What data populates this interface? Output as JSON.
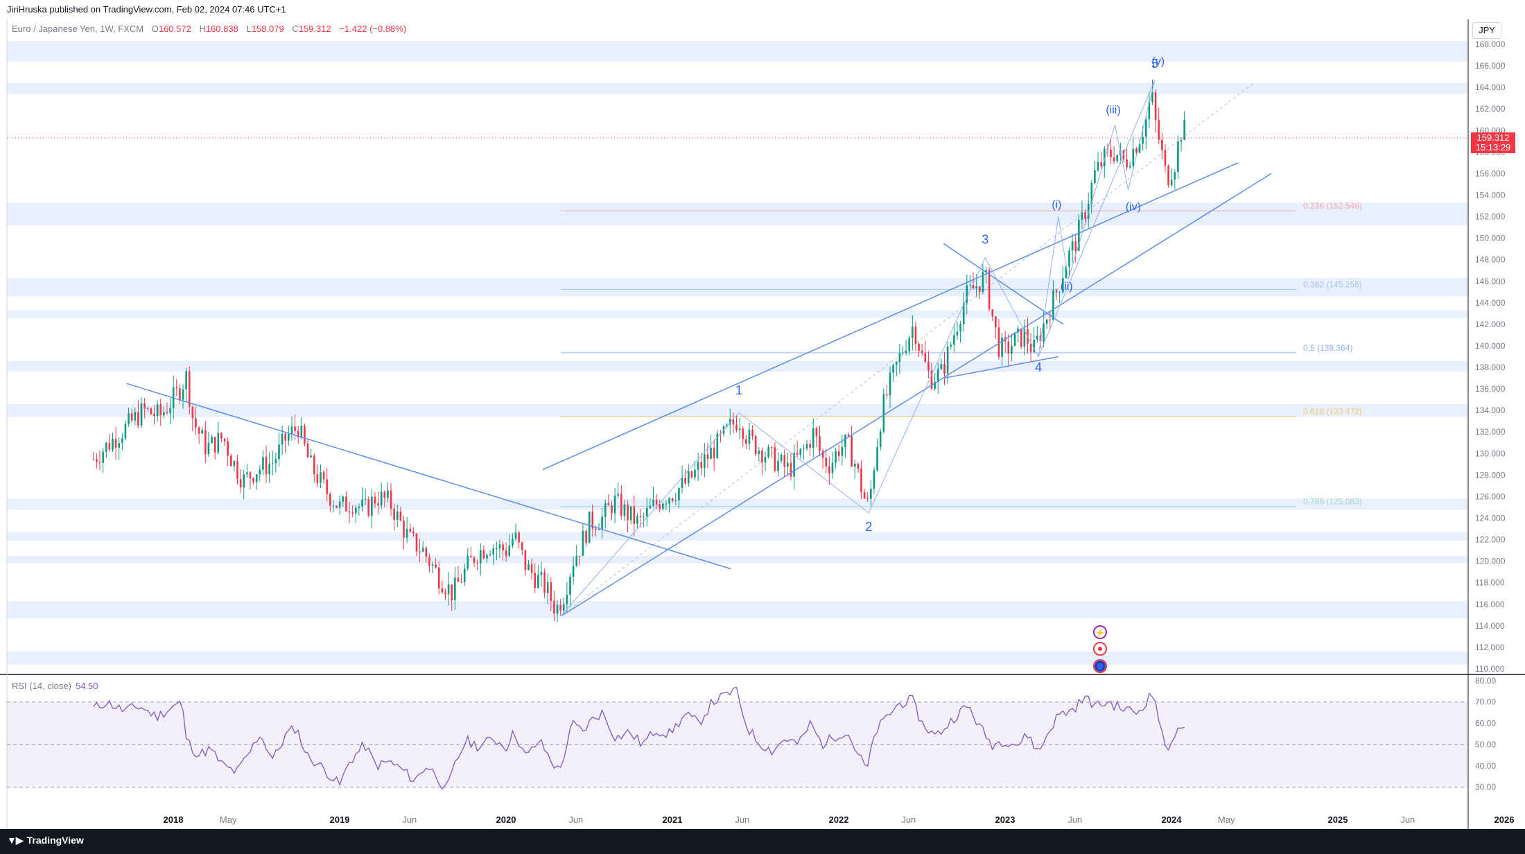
{
  "header": {
    "published_by": "JiriHruska published on TradingView.com, Feb 02, 2024 07:46 UTC+1"
  },
  "legend": {
    "symbol": "Euro / Japanese Yen, 1W, FXCM",
    "open_label": "O",
    "open": "160.572",
    "high_label": "H",
    "high": "160.838",
    "low_label": "L",
    "low": "158.079",
    "close_label": "C",
    "close": "159.312",
    "change": "−1.422 (−0.88%)"
  },
  "currency_button": "JPY",
  "price_tag": {
    "price": "159.312",
    "countdown": "15:13:29"
  },
  "footer": {
    "brand": "TradingView"
  },
  "colors": {
    "accent": "#2962ff",
    "down": "#f23645",
    "up": "#089981",
    "trendline": "#5b8def",
    "rsi": "#7e57c2",
    "band": "#e8efff"
  },
  "chart_data": [
    {
      "type": "candlestick",
      "title": "",
      "symbol": "EUR/JPY",
      "timeframe": "1W",
      "ylim": [
        110,
        168
      ],
      "y_ticks": [
        "110.000",
        "112.000",
        "114.000",
        "116.000",
        "118.000",
        "120.000",
        "122.000",
        "124.000",
        "126.000",
        "128.000",
        "130.000",
        "132.000",
        "134.000",
        "136.000",
        "138.000",
        "140.000",
        "142.000",
        "144.000",
        "146.000",
        "148.000",
        "150.000",
        "152.000",
        "154.000",
        "156.000",
        "158.000",
        "160.000",
        "162.000",
        "164.000",
        "166.000",
        "168.000"
      ],
      "x_ticks": [
        {
          "label": "2018",
          "t": 2018.0,
          "bold": true
        },
        {
          "label": "May",
          "t": 2018.33,
          "bold": false
        },
        {
          "label": "2019",
          "t": 2019.0,
          "bold": true
        },
        {
          "label": "Jun",
          "t": 2019.42,
          "bold": false
        },
        {
          "label": "2020",
          "t": 2020.0,
          "bold": true
        },
        {
          "label": "Jun",
          "t": 2020.42,
          "bold": false
        },
        {
          "label": "2021",
          "t": 2021.0,
          "bold": true
        },
        {
          "label": "Jun",
          "t": 2021.42,
          "bold": false
        },
        {
          "label": "2022",
          "t": 2022.0,
          "bold": true
        },
        {
          "label": "Jun",
          "t": 2022.42,
          "bold": false
        },
        {
          "label": "2023",
          "t": 2023.0,
          "bold": true
        },
        {
          "label": "Jun",
          "t": 2023.42,
          "bold": false
        },
        {
          "label": "2024",
          "t": 2024.0,
          "bold": true
        },
        {
          "label": "May",
          "t": 2024.33,
          "bold": false
        },
        {
          "label": "2025",
          "t": 2025.0,
          "bold": true
        },
        {
          "label": "Jun",
          "t": 2025.42,
          "bold": false
        },
        {
          "label": "2026",
          "t": 2026.0,
          "bold": true
        }
      ],
      "price_path": [
        [
          2017.52,
          129.5
        ],
        [
          2017.62,
          131
        ],
        [
          2017.72,
          132.5
        ],
        [
          2017.82,
          134
        ],
        [
          2017.92,
          133.5
        ],
        [
          2018.02,
          135.5
        ],
        [
          2018.08,
          137.2
        ],
        [
          2018.12,
          133
        ],
        [
          2018.2,
          130.5
        ],
        [
          2018.3,
          131.5
        ],
        [
          2018.35,
          129.5
        ],
        [
          2018.42,
          127.5
        ],
        [
          2018.5,
          128.5
        ],
        [
          2018.6,
          129.2
        ],
        [
          2018.68,
          131.5
        ],
        [
          2018.75,
          132.5
        ],
        [
          2018.82,
          129
        ],
        [
          2018.92,
          126.5
        ],
        [
          2019.0,
          125
        ],
        [
          2019.08,
          125.5
        ],
        [
          2019.15,
          124.7
        ],
        [
          2019.22,
          126
        ],
        [
          2019.3,
          125.5
        ],
        [
          2019.35,
          124
        ],
        [
          2019.42,
          122
        ],
        [
          2019.5,
          121
        ],
        [
          2019.6,
          118.5
        ],
        [
          2019.68,
          117
        ],
        [
          2019.75,
          119
        ],
        [
          2019.82,
          120.7
        ],
        [
          2019.9,
          121.5
        ],
        [
          2020.0,
          121
        ],
        [
          2020.05,
          122.4
        ],
        [
          2020.12,
          119.5
        ],
        [
          2020.18,
          118.5
        ],
        [
          2020.24,
          117.5
        ],
        [
          2020.3,
          115.5
        ],
        [
          2020.35,
          117
        ],
        [
          2020.4,
          120
        ],
        [
          2020.45,
          121.5
        ],
        [
          2020.5,
          123.5
        ],
        [
          2020.58,
          124
        ],
        [
          2020.65,
          125.6
        ],
        [
          2020.72,
          124.5
        ],
        [
          2020.8,
          123.5
        ],
        [
          2020.88,
          125
        ],
        [
          2020.95,
          126
        ],
        [
          2021.0,
          126.3
        ],
        [
          2021.1,
          127.5
        ],
        [
          2021.2,
          129.5
        ],
        [
          2021.28,
          131
        ],
        [
          2021.35,
          132.5
        ],
        [
          2021.4,
          133.3
        ],
        [
          2021.45,
          131.5
        ],
        [
          2021.52,
          130.5
        ],
        [
          2021.6,
          129.5
        ],
        [
          2021.7,
          128.5
        ],
        [
          2021.8,
          130.5
        ],
        [
          2021.85,
          132
        ],
        [
          2021.9,
          129.5
        ],
        [
          2021.95,
          129
        ],
        [
          2022.0,
          130.5
        ],
        [
          2022.05,
          130.9
        ],
        [
          2022.1,
          129
        ],
        [
          2022.15,
          126
        ],
        [
          2022.18,
          125
        ],
        [
          2022.22,
          130
        ],
        [
          2022.26,
          134
        ],
        [
          2022.32,
          137
        ],
        [
          2022.38,
          139.5
        ],
        [
          2022.45,
          142
        ],
        [
          2022.5,
          139
        ],
        [
          2022.55,
          137
        ],
        [
          2022.62,
          137.5
        ],
        [
          2022.7,
          141.5
        ],
        [
          2022.76,
          144.5
        ],
        [
          2022.82,
          145.5
        ],
        [
          2022.88,
          146.5
        ],
        [
          2022.92,
          143
        ],
        [
          2022.96,
          140
        ],
        [
          2023.0,
          139.5
        ],
        [
          2023.06,
          140.5
        ],
        [
          2023.12,
          141
        ],
        [
          2023.17,
          139.5
        ],
        [
          2023.22,
          141.5
        ],
        [
          2023.27,
          143.5
        ],
        [
          2023.32,
          145.5
        ],
        [
          2023.37,
          148
        ],
        [
          2023.42,
          149.5
        ],
        [
          2023.48,
          152.5
        ],
        [
          2023.54,
          156
        ],
        [
          2023.6,
          157.5
        ],
        [
          2023.66,
          158
        ],
        [
          2023.72,
          157
        ],
        [
          2023.78,
          158.5
        ],
        [
          2023.84,
          160.5
        ],
        [
          2023.88,
          163.5
        ],
        [
          2023.9,
          161
        ],
        [
          2023.94,
          158
        ],
        [
          2023.97,
          155.5
        ],
        [
          2024.02,
          157
        ],
        [
          2024.05,
          159.5
        ],
        [
          2024.07,
          160.5
        ],
        [
          2024.09,
          159.3
        ]
      ],
      "horizontal_bands": [
        [
          166.4,
          168.3
        ],
        [
          163.4,
          164.4
        ],
        [
          151.2,
          153.3
        ],
        [
          144.6,
          146.3
        ],
        [
          142.6,
          143.3
        ],
        [
          137.6,
          138.6
        ],
        [
          133.4,
          134.6
        ],
        [
          124.8,
          125.8
        ],
        [
          121.9,
          122.7
        ],
        [
          119.8,
          120.5
        ],
        [
          114.7,
          116.3
        ],
        [
          110.4,
          111.6
        ]
      ],
      "fibonacci": [
        {
          "label": "0.236 (152.546)",
          "price": 152.546,
          "color": "#f7a9a8"
        },
        {
          "label": "0.382 (145.256)",
          "price": 145.256,
          "color": "#a5c4ee"
        },
        {
          "label": "0.5 (139.364)",
          "price": 139.364,
          "color": "#90b4f0"
        },
        {
          "label": "0.618 (133.472)",
          "price": 133.472,
          "color": "#f5c96a"
        },
        {
          "label": "0.786 (125.083)",
          "price": 125.083,
          "color": "#a3d9c5"
        }
      ],
      "trendlines": [
        [
          [
            2017.72,
            136.5
          ],
          [
            2021.35,
            119.3
          ]
        ],
        [
          [
            2020.22,
            128.5
          ],
          [
            2024.4,
            157
          ]
        ],
        [
          [
            2020.33,
            114.9
          ],
          [
            2024.6,
            156
          ]
        ],
        [
          [
            2022.63,
            149.5
          ],
          [
            2023.35,
            142
          ]
        ],
        [
          [
            2022.63,
            137
          ],
          [
            2023.32,
            139
          ]
        ]
      ],
      "wave_paths": [
        [
          [
            2020.33,
            114.9
          ],
          [
            2021.4,
            133.8
          ],
          [
            2022.18,
            124.5
          ],
          [
            2022.88,
            148.2
          ],
          [
            2023.2,
            139
          ],
          [
            2023.9,
            164.7
          ]
        ],
        [
          [
            2023.2,
            139
          ],
          [
            2023.32,
            152
          ],
          [
            2023.38,
            146.2
          ],
          [
            2023.66,
            160.5
          ],
          [
            2023.74,
            154.5
          ],
          [
            2023.9,
            164.7
          ]
        ]
      ],
      "wave_labels": [
        {
          "text": "1",
          "t": 2021.4,
          "price": 135.5
        },
        {
          "text": "2",
          "t": 2022.18,
          "price": 122.8
        },
        {
          "text": "3",
          "t": 2022.88,
          "price": 149.5
        },
        {
          "text": "4",
          "t": 2023.2,
          "price": 137.6
        },
        {
          "text": "5",
          "t": 2023.9,
          "price": 165.8
        },
        {
          "text": "(i)",
          "t": 2023.31,
          "price": 152.8
        },
        {
          "text": "(ii)",
          "t": 2023.37,
          "price": 145.2
        },
        {
          "text": "(iii)",
          "t": 2023.65,
          "price": 161.6
        },
        {
          "text": "(iv)",
          "t": 2023.77,
          "price": 152.6
        },
        {
          "text": "(v)",
          "t": 2023.92,
          "price": 166.1
        }
      ],
      "last_price": 159.312
    },
    {
      "type": "line",
      "legend_label": "RSI (14, close)",
      "legend_value": "54.50",
      "ylim": [
        25,
        80
      ],
      "y_ticks": [
        "30.00",
        "40.00",
        "50.00",
        "60.00",
        "70.00",
        "80.00"
      ],
      "levels": [
        70,
        50,
        30
      ],
      "rsi_path": [
        [
          2017.52,
          67
        ],
        [
          2017.6,
          70
        ],
        [
          2017.7,
          66
        ],
        [
          2017.8,
          68
        ],
        [
          2017.9,
          63
        ],
        [
          2018.0,
          68
        ],
        [
          2018.05,
          70
        ],
        [
          2018.08,
          52
        ],
        [
          2018.15,
          45
        ],
        [
          2018.22,
          48
        ],
        [
          2018.3,
          40
        ],
        [
          2018.38,
          37
        ],
        [
          2018.45,
          45
        ],
        [
          2018.52,
          55
        ],
        [
          2018.6,
          43
        ],
        [
          2018.68,
          55
        ],
        [
          2018.74,
          58
        ],
        [
          2018.8,
          45
        ],
        [
          2018.9,
          39
        ],
        [
          2019.0,
          31
        ],
        [
          2019.06,
          42
        ],
        [
          2019.15,
          50
        ],
        [
          2019.22,
          40
        ],
        [
          2019.3,
          42
        ],
        [
          2019.38,
          38
        ],
        [
          2019.45,
          33
        ],
        [
          2019.52,
          40
        ],
        [
          2019.58,
          36
        ],
        [
          2019.64,
          28
        ],
        [
          2019.7,
          42
        ],
        [
          2019.76,
          52
        ],
        [
          2019.84,
          49
        ],
        [
          2019.92,
          53
        ],
        [
          2020.0,
          49
        ],
        [
          2020.05,
          56
        ],
        [
          2020.12,
          44
        ],
        [
          2020.2,
          52
        ],
        [
          2020.26,
          44
        ],
        [
          2020.32,
          37
        ],
        [
          2020.4,
          60
        ],
        [
          2020.46,
          56
        ],
        [
          2020.52,
          62
        ],
        [
          2020.58,
          65
        ],
        [
          2020.66,
          53
        ],
        [
          2020.74,
          56
        ],
        [
          2020.82,
          50
        ],
        [
          2020.9,
          57
        ],
        [
          2020.98,
          55
        ],
        [
          2021.08,
          64
        ],
        [
          2021.16,
          60
        ],
        [
          2021.24,
          70
        ],
        [
          2021.32,
          73
        ],
        [
          2021.38,
          76
        ],
        [
          2021.45,
          58
        ],
        [
          2021.52,
          51
        ],
        [
          2021.6,
          47
        ],
        [
          2021.68,
          53
        ],
        [
          2021.76,
          50
        ],
        [
          2021.83,
          60
        ],
        [
          2021.9,
          50
        ],
        [
          2022.0,
          55
        ],
        [
          2022.05,
          56
        ],
        [
          2022.12,
          45
        ],
        [
          2022.17,
          38
        ],
        [
          2022.22,
          56
        ],
        [
          2022.3,
          64
        ],
        [
          2022.36,
          69
        ],
        [
          2022.44,
          71
        ],
        [
          2022.5,
          60
        ],
        [
          2022.58,
          54
        ],
        [
          2022.64,
          58
        ],
        [
          2022.72,
          65
        ],
        [
          2022.78,
          68
        ],
        [
          2022.85,
          58
        ],
        [
          2022.92,
          50
        ],
        [
          2023.0,
          52
        ],
        [
          2023.08,
          50
        ],
        [
          2023.14,
          55
        ],
        [
          2023.2,
          46
        ],
        [
          2023.26,
          56
        ],
        [
          2023.32,
          64
        ],
        [
          2023.4,
          66
        ],
        [
          2023.48,
          72
        ],
        [
          2023.55,
          68
        ],
        [
          2023.62,
          70
        ],
        [
          2023.7,
          67
        ],
        [
          2023.8,
          65
        ],
        [
          2023.86,
          72
        ],
        [
          2023.9,
          73
        ],
        [
          2023.94,
          55
        ],
        [
          2023.97,
          47
        ],
        [
          2024.0,
          53
        ],
        [
          2024.04,
          56
        ],
        [
          2024.06,
          59
        ],
        [
          2024.09,
          54.5
        ]
      ]
    }
  ]
}
